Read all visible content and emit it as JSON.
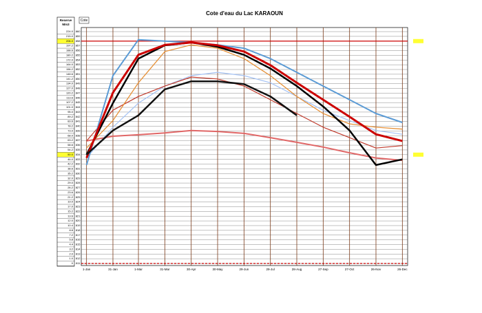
{
  "chart_data": {
    "type": "line",
    "title": "Cote d'eau du Lac  KARAOUN",
    "y_axis_label": "Cote",
    "reserve_header": [
      "Reserve",
      "Mm3"
    ],
    "reserve": [
      "224.0",
      "215.0",
      "206.0",
      "197.2",
      "188.6",
      "180.2",
      "172.0",
      "164.0",
      "156.2",
      "148.6",
      "141.2",
      "134.0",
      "127.0",
      "120.2",
      "113.6",
      "107.2",
      "101.0",
      "95.0",
      "89.2",
      "83.6",
      "78.2",
      "73.0",
      "68.0",
      "63.2",
      "58.6",
      "54.2",
      "50.0",
      "46.0",
      "42.2",
      "38.6",
      "35.2",
      "32.0",
      "29.0",
      "26.2",
      "23.6",
      "21.2",
      "19.0",
      "17.0",
      "15.2",
      "13.6",
      "12.0",
      "10.4",
      "8.8",
      "7.2",
      "5.8",
      "4.4",
      "3.2",
      "2.0",
      "1.0",
      "0"
    ],
    "highlight_levels": [
      858,
      834
    ],
    "reference_lines": [
      858,
      811
    ],
    "x": [
      0,
      30,
      59,
      89,
      119,
      149,
      179,
      209,
      239,
      269,
      299,
      329,
      359
    ],
    "xlim": [
      -6,
      365
    ],
    "xticks": [
      {
        "value": 0,
        "label": "1-Jan"
      },
      {
        "value": 30,
        "label": "31-Jan"
      },
      {
        "value": 59,
        "label": "1-Mar"
      },
      {
        "value": 89,
        "label": "31-Mar"
      },
      {
        "value": 119,
        "label": "30-Apr"
      },
      {
        "value": 149,
        "label": "30-May"
      },
      {
        "value": 179,
        "label": "29-Jun"
      },
      {
        "value": 209,
        "label": "29-Jul"
      },
      {
        "value": 239,
        "label": "28-Aug"
      },
      {
        "value": 269,
        "label": "27-Sep"
      },
      {
        "value": 299,
        "label": "27-Oct"
      },
      {
        "value": 329,
        "label": "26-Nov"
      },
      {
        "value": 359,
        "label": "26-Dec"
      }
    ],
    "ylim": [
      811,
      860
    ],
    "yticks": [
      860,
      859,
      858,
      857,
      856,
      855,
      854,
      853,
      852,
      851,
      850,
      849,
      848,
      847,
      846,
      845,
      844,
      843,
      842,
      841,
      840,
      839,
      838,
      837,
      836,
      835,
      834,
      833,
      832,
      831,
      830,
      829,
      828,
      827,
      826,
      825,
      824,
      823,
      822,
      821,
      820,
      819,
      818,
      817,
      816,
      815,
      814,
      813,
      812,
      811
    ],
    "grid": true,
    "series": [
      {
        "color": "#e06666",
        "width": 2,
        "values": [
          836.9,
          837.9,
          838.2,
          838.6,
          839.1,
          838.9,
          838.5,
          837.6,
          836.6,
          835.6,
          834.4,
          833.3,
          832.8
        ]
      },
      {
        "color": "#a4c2f4",
        "width": 1.2,
        "values": [
          833.3,
          839.8,
          844.9,
          848.5,
          850.7,
          851.4,
          850.7,
          849.2,
          846.3,
          843.4,
          841.2,
          839.1,
          838.3
        ]
      },
      {
        "color": "#c0392b",
        "width": 1.2,
        "values": [
          836.9,
          843.4,
          846.3,
          848.5,
          850.4,
          850.0,
          848.5,
          845.6,
          842.7,
          839.8,
          837.6,
          835.4,
          835.9
        ]
      },
      {
        "color": "#e69138",
        "width": 1.3,
        "values": [
          835.4,
          841.2,
          849.2,
          855.8,
          857.2,
          856.5,
          854.3,
          850.7,
          846.3,
          842.7,
          840.5,
          839.8,
          839.4
        ]
      },
      {
        "color": "#5b9bd5",
        "width": 2,
        "values": [
          831.8,
          850.7,
          858.3,
          858.0,
          857.7,
          857.2,
          856.5,
          854.3,
          851.4,
          848.5,
          845.6,
          842.7,
          840.8
        ]
      },
      {
        "color": "#000000",
        "width": 2.5,
        "values": [
          834.0,
          844.9,
          854.3,
          857.1,
          857.7,
          856.8,
          855.1,
          852.2,
          848.5,
          844.2,
          839.1,
          831.8,
          833.0
        ]
      },
      {
        "color": "#cc0000",
        "width": 3,
        "values": [
          833.3,
          847.1,
          855.1,
          857.2,
          857.7,
          857.1,
          855.8,
          852.9,
          849.2,
          845.6,
          842.0,
          838.3,
          836.9
        ]
      },
      {
        "color": "#111111",
        "width": 2.5,
        "values": [
          834.0,
          839.1,
          842.3,
          847.8,
          849.5,
          849.5,
          848.9,
          846.3,
          842.3,
          null,
          null,
          null,
          null
        ]
      }
    ]
  }
}
